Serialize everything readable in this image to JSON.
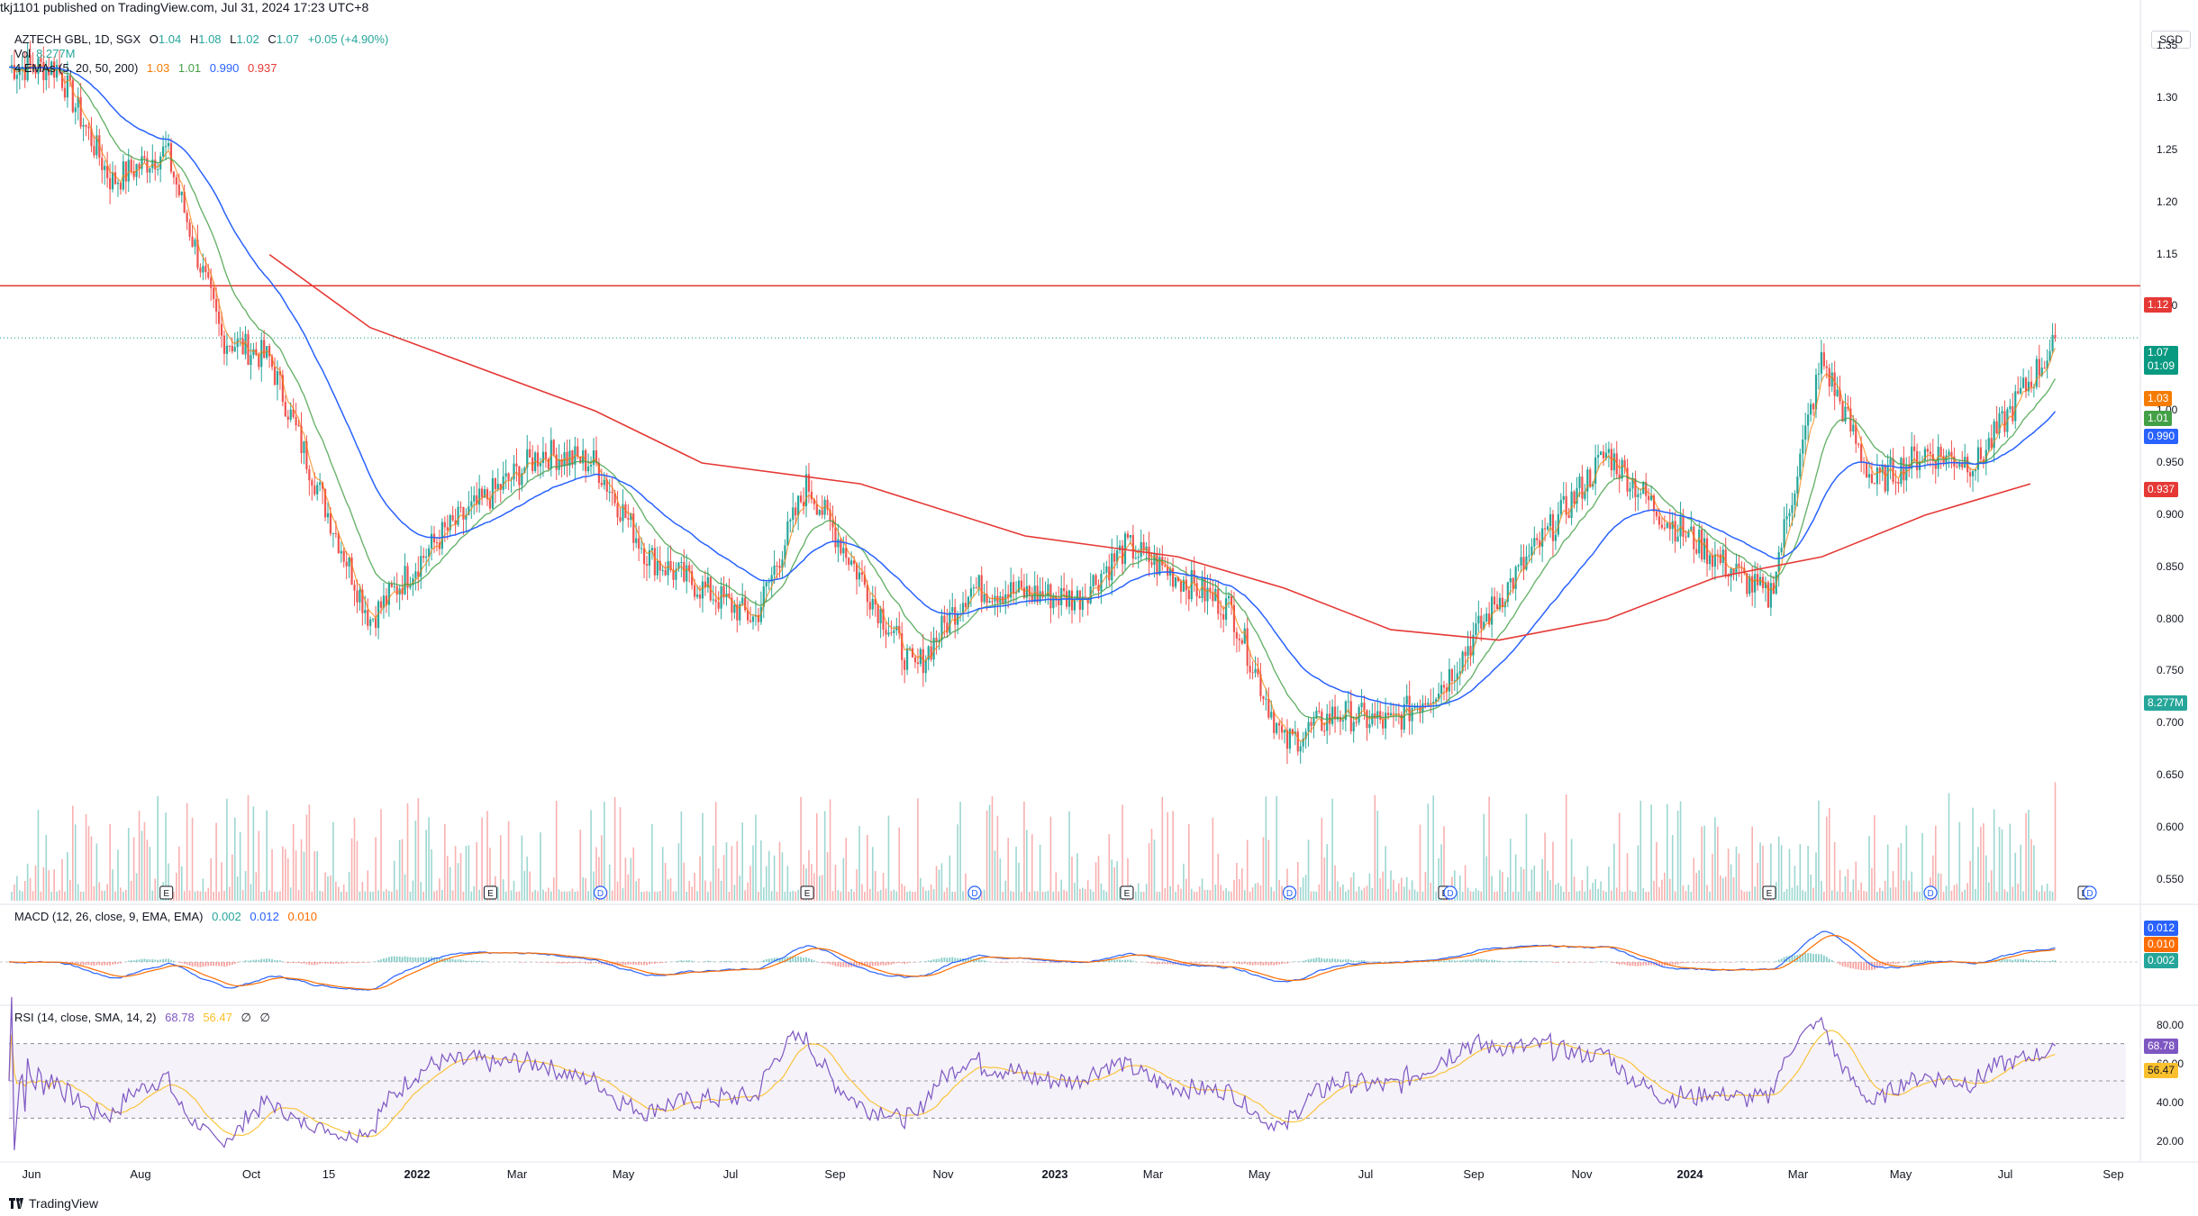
{
  "header": {
    "published": "tkj1101 published on TradingView.com, Jul 31, 2024 17:23 UTC+8",
    "symbol": "AZTECH GBL, 1D, SGX",
    "o_label": "O",
    "o_value": "1.04",
    "h_label": "H",
    "h_value": "1.08",
    "l_label": "L",
    "l_value": "1.02",
    "c_label": "C",
    "c_value": "1.07",
    "change": "+0.05 (+4.90%)",
    "vol_label": "Vol",
    "vol_value": "8.277M",
    "ema_label": "4 EMAs (5, 20, 50, 200)",
    "ema_values": [
      "1.03",
      "1.01",
      "0.990",
      "0.937"
    ],
    "currency": "SGD"
  },
  "price_tags": {
    "resistance": "1.12",
    "last_price": "1.07",
    "countdown": "01:09",
    "ema5": "1.03",
    "ema20": "1.01",
    "ema50": "0.990",
    "ema200": "0.937",
    "volume": "8.277M"
  },
  "macd": {
    "label": "MACD (12, 26, close, 9, EMA, EMA)",
    "values": [
      "0.002",
      "0.012",
      "0.010"
    ],
    "tags": [
      "0.012",
      "0.010",
      "0.002"
    ]
  },
  "rsi": {
    "label": "RSI (14, close, SMA, 14, 2)",
    "values": [
      "68.78",
      "56.47",
      "∅",
      "∅"
    ],
    "tags": [
      "68.78",
      "56.47"
    ],
    "axis": [
      "80.00",
      "60.00",
      "40.00",
      "20.00"
    ]
  },
  "colors": {
    "up": "#26a69a",
    "down": "#ef5350",
    "ema5": "#f57c00",
    "ema20": "#43a047",
    "ema50": "#2962ff",
    "ema200": "#e53935",
    "resistance": "#e53935",
    "rsi": "#7e57c2",
    "rsi_ma": "#fbc02d",
    "macd": "#2962ff",
    "signal": "#ff6d00"
  },
  "chart_data": {
    "type": "candlestick",
    "title": "AZTECH GBL, 1D, SGX",
    "price_axis": [
      "1.35",
      "1.30",
      "1.25",
      "1.20",
      "1.15",
      "1.10",
      "1.05",
      "1.00",
      "0.950",
      "0.900",
      "0.850",
      "0.800",
      "0.750",
      "0.700",
      "0.650",
      "0.600",
      "0.550"
    ],
    "time_axis": [
      "Jun",
      "Aug",
      "Oct",
      "15",
      "2022",
      "Mar",
      "May",
      "Jul",
      "Sep",
      "Nov",
      "2023",
      "Mar",
      "May",
      "Jul",
      "Sep",
      "Nov",
      "2024",
      "Mar",
      "May",
      "Jul",
      "Sep"
    ],
    "ylim": [
      0.53,
      1.37
    ],
    "resistance_level": 1.12,
    "approx_close_path": [
      {
        "date": "2021-06",
        "close": 1.33
      },
      {
        "date": "2021-07",
        "close": 1.22
      },
      {
        "date": "2021-08",
        "close": 1.25
      },
      {
        "date": "2021-09",
        "close": 1.07
      },
      {
        "date": "2021-10",
        "close": 1.05
      },
      {
        "date": "2021-11",
        "close": 0.95
      },
      {
        "date": "2021-12",
        "close": 0.8
      },
      {
        "date": "2022-01",
        "close": 0.88
      },
      {
        "date": "2022-03",
        "close": 0.96
      },
      {
        "date": "2022-04",
        "close": 0.95
      },
      {
        "date": "2022-05",
        "close": 0.86
      },
      {
        "date": "2022-07",
        "close": 0.8
      },
      {
        "date": "2022-08",
        "close": 0.93
      },
      {
        "date": "2022-10",
        "close": 0.75
      },
      {
        "date": "2022-11",
        "close": 0.83
      },
      {
        "date": "2023-01",
        "close": 0.82
      },
      {
        "date": "2023-02",
        "close": 0.87
      },
      {
        "date": "2023-04",
        "close": 0.81
      },
      {
        "date": "2023-05",
        "close": 0.68
      },
      {
        "date": "2023-06",
        "close": 0.71
      },
      {
        "date": "2023-07",
        "close": 0.7
      },
      {
        "date": "2023-08",
        "close": 0.74
      },
      {
        "date": "2023-09",
        "close": 0.82
      },
      {
        "date": "2023-11",
        "close": 0.96
      },
      {
        "date": "2023-12",
        "close": 0.9
      },
      {
        "date": "2024-02",
        "close": 0.82
      },
      {
        "date": "2024-03",
        "close": 1.05
      },
      {
        "date": "2024-04",
        "close": 0.93
      },
      {
        "date": "2024-05",
        "close": 0.96
      },
      {
        "date": "2024-06",
        "close": 0.95
      },
      {
        "date": "2024-07",
        "close": 1.03
      },
      {
        "date": "2024-07-31",
        "close": 1.07
      }
    ],
    "ema200_path": [
      {
        "date": "2021-10",
        "value": 1.15
      },
      {
        "date": "2021-12",
        "value": 1.08
      },
      {
        "date": "2022-04",
        "value": 1.0
      },
      {
        "date": "2022-06",
        "value": 0.95
      },
      {
        "date": "2022-09",
        "value": 0.93
      },
      {
        "date": "2022-12",
        "value": 0.88
      },
      {
        "date": "2023-03",
        "value": 0.86
      },
      {
        "date": "2023-05",
        "value": 0.83
      },
      {
        "date": "2023-07",
        "value": 0.79
      },
      {
        "date": "2023-09",
        "value": 0.78
      },
      {
        "date": "2023-11",
        "value": 0.8
      },
      {
        "date": "2024-01",
        "value": 0.84
      },
      {
        "date": "2024-03",
        "value": 0.86
      },
      {
        "date": "2024-05",
        "value": 0.9
      },
      {
        "date": "2024-07",
        "value": 0.93
      }
    ],
    "event_markers": [
      {
        "date": "2021-08",
        "type": "E"
      },
      {
        "date": "2022-02",
        "type": "E"
      },
      {
        "date": "2022-04",
        "type": "D"
      },
      {
        "date": "2022-08",
        "type": "E"
      },
      {
        "date": "2022-11",
        "type": "D"
      },
      {
        "date": "2023-02",
        "type": "E"
      },
      {
        "date": "2023-05",
        "type": "D"
      },
      {
        "date": "2023-08",
        "type": "E"
      },
      {
        "date": "2023-08",
        "type": "D"
      },
      {
        "date": "2024-02",
        "type": "E"
      },
      {
        "date": "2024-05",
        "type": "D"
      },
      {
        "date": "2024-08",
        "type": "E"
      },
      {
        "date": "2024-08",
        "type": "D"
      }
    ]
  }
}
